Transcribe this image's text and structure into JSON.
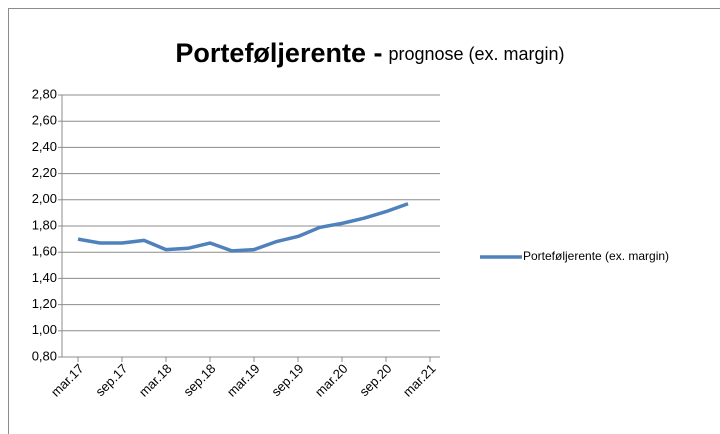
{
  "chart_data": {
    "type": "line",
    "title": "Porteføljerente -",
    "subtitle": "prognose (ex. margin)",
    "categories": [
      "mar.17",
      null,
      "sep.17",
      null,
      "mar.18",
      null,
      "sep.18",
      null,
      "mar.19",
      null,
      "sep.19",
      null,
      "mar.20",
      null,
      "sep.20",
      null,
      "mar.21"
    ],
    "series": [
      {
        "name": "Porteføljerente (ex. margin)",
        "color": "#4f81bd",
        "values": [
          1.7,
          1.67,
          1.67,
          1.69,
          1.62,
          1.63,
          1.67,
          1.61,
          1.62,
          1.68,
          1.72,
          1.79,
          1.82,
          1.86,
          1.91,
          1.97,
          null
        ]
      }
    ],
    "ylim": [
      0.8,
      2.8
    ],
    "yticks": [
      {
        "value": 0.8,
        "label": "0,80"
      },
      {
        "value": 1.0,
        "label": "1,00"
      },
      {
        "value": 1.2,
        "label": "1,20"
      },
      {
        "value": 1.4,
        "label": "1,40"
      },
      {
        "value": 1.6,
        "label": "1,60"
      },
      {
        "value": 1.8,
        "label": "1,80"
      },
      {
        "value": 2.0,
        "label": "2,00"
      },
      {
        "value": 2.2,
        "label": "2,20"
      },
      {
        "value": 2.4,
        "label": "2,40"
      },
      {
        "value": 2.6,
        "label": "2,60"
      },
      {
        "value": 2.8,
        "label": "2,80"
      }
    ],
    "grid": true,
    "legend": "right"
  }
}
